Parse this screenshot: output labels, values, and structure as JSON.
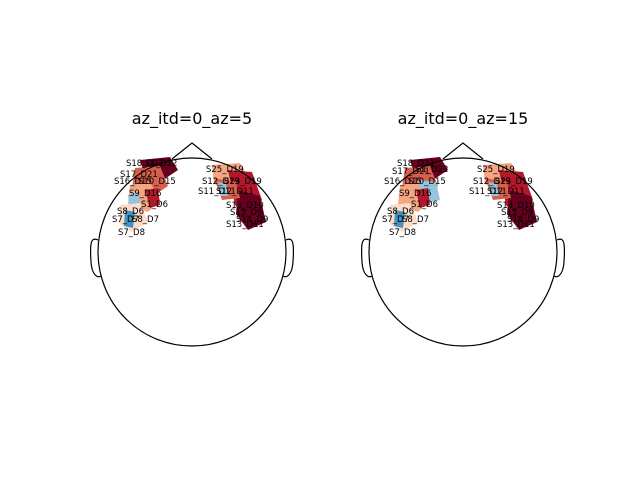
{
  "colors": {
    "dark_red": "#67001f",
    "red": "#b2182b",
    "salmon": "#d6604d",
    "peach": "#f4a582",
    "light": "#fddbc7",
    "white": "#f7f7f7",
    "light_blue": "#d1e5f0",
    "blue": "#92c5de",
    "mid_blue": "#4393c3"
  },
  "panels": [
    {
      "title": "az_itd=0_az=5",
      "left_labels": [
        "S18_D21",
        "S1_D22",
        "S17_D21",
        "S16_D15",
        "S10_D15",
        "S9_D16",
        "S1_D6",
        "S8_D6",
        "S7_D7",
        "S8_D7",
        "S7_D8"
      ],
      "right_labels": [
        "S25_D19",
        "S23_D19",
        "S12_D19",
        "S11_D11",
        "S12_D11",
        "S13_D10",
        "S15_D9",
        "S14_D9",
        "S13_D11"
      ]
    },
    {
      "title": "az_itd=0_az=15",
      "left_labels": [
        "S18_D21",
        "S1_D22",
        "S17_D21",
        "S16_D15",
        "S10_D15",
        "S9_D16",
        "S1_D6",
        "S8_D6",
        "S7_D7",
        "S8_D7",
        "S7_D8"
      ],
      "right_labels": [
        "S25_D19",
        "S23_D19",
        "S12_D19",
        "S11_D11",
        "S12_D11",
        "S13_D10",
        "S15_D9",
        "S14_D9",
        "S13_D11"
      ]
    }
  ]
}
